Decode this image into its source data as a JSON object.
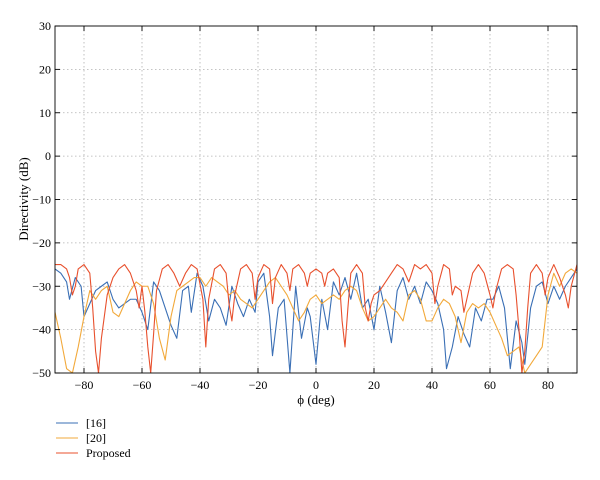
{
  "chart_data": {
    "type": "line",
    "xlabel": "ϕ (deg)",
    "ylabel": "Directivity (dB)",
    "xlim": [
      -90,
      90
    ],
    "ylim": [
      -50,
      30
    ],
    "xticks": [
      -80,
      -60,
      -40,
      -20,
      0,
      20,
      40,
      60,
      80
    ],
    "xtick_labels": [
      "−80",
      "−60",
      "−40",
      "−20",
      "0",
      "20",
      "40",
      "60",
      "80"
    ],
    "yticks": [
      30,
      20,
      10,
      0,
      -10,
      -20,
      -30,
      -40,
      -50
    ],
    "ytick_labels": [
      "30",
      "20",
      "10",
      "0",
      "−10",
      "−20",
      "−30",
      "−40",
      "−50"
    ],
    "grid": true,
    "legend_position": "below-left",
    "series": [
      {
        "name": "[16]",
        "color": "#3a6fb5",
        "points": [
          [
            -90,
            -26
          ],
          [
            -88,
            -27
          ],
          [
            -86,
            -29
          ],
          [
            -85,
            -33
          ],
          [
            -83,
            -28
          ],
          [
            -81,
            -30
          ],
          [
            -80,
            -37
          ],
          [
            -78,
            -34
          ],
          [
            -76,
            -31
          ],
          [
            -74,
            -30
          ],
          [
            -72,
            -29
          ],
          [
            -70,
            -33
          ],
          [
            -68,
            -35
          ],
          [
            -66,
            -34
          ],
          [
            -64,
            -33
          ],
          [
            -62,
            -33
          ],
          [
            -60,
            -36
          ],
          [
            -58,
            -40
          ],
          [
            -56,
            -29
          ],
          [
            -54,
            -31
          ],
          [
            -52,
            -35
          ],
          [
            -50,
            -39
          ],
          [
            -48,
            -42
          ],
          [
            -46,
            -31
          ],
          [
            -44,
            -30
          ],
          [
            -43,
            -36
          ],
          [
            -41,
            -27
          ],
          [
            -39,
            -30
          ],
          [
            -37,
            -38
          ],
          [
            -35,
            -33
          ],
          [
            -33,
            -35
          ],
          [
            -31,
            -39
          ],
          [
            -29,
            -30
          ],
          [
            -27,
            -34
          ],
          [
            -25,
            -37
          ],
          [
            -23,
            -33
          ],
          [
            -21,
            -36
          ],
          [
            -20,
            -29
          ],
          [
            -18,
            -27
          ],
          [
            -16,
            -37
          ],
          [
            -15,
            -46
          ],
          [
            -13,
            -35
          ],
          [
            -11,
            -33
          ],
          [
            -9,
            -50
          ],
          [
            -7,
            -30
          ],
          [
            -5,
            -42
          ],
          [
            -3,
            -35
          ],
          [
            -2,
            -37
          ],
          [
            0,
            -48
          ],
          [
            2,
            -33
          ],
          [
            4,
            -40
          ],
          [
            6,
            -29
          ],
          [
            8,
            -32
          ],
          [
            10,
            -28
          ],
          [
            12,
            -33
          ],
          [
            14,
            -27
          ],
          [
            16,
            -35
          ],
          [
            18,
            -33
          ],
          [
            20,
            -40
          ],
          [
            22,
            -30
          ],
          [
            24,
            -36
          ],
          [
            26,
            -43
          ],
          [
            28,
            -31
          ],
          [
            30,
            -28
          ],
          [
            32,
            -33
          ],
          [
            34,
            -30
          ],
          [
            36,
            -34
          ],
          [
            38,
            -29
          ],
          [
            40,
            -31
          ],
          [
            42,
            -34
          ],
          [
            44,
            -40
          ],
          [
            45,
            -49
          ],
          [
            47,
            -44
          ],
          [
            49,
            -37
          ],
          [
            51,
            -41
          ],
          [
            53,
            -44
          ],
          [
            55,
            -35
          ],
          [
            57,
            -38
          ],
          [
            59,
            -33
          ],
          [
            61,
            -33
          ],
          [
            63,
            -30
          ],
          [
            65,
            -35
          ],
          [
            67,
            -49
          ],
          [
            69,
            -38
          ],
          [
            71,
            -43
          ],
          [
            72,
            -48
          ],
          [
            74,
            -35
          ],
          [
            76,
            -30
          ],
          [
            78,
            -29
          ],
          [
            80,
            -34
          ],
          [
            82,
            -30
          ],
          [
            84,
            -33
          ],
          [
            86,
            -30
          ],
          [
            88,
            -28
          ],
          [
            90,
            -26
          ]
        ]
      },
      {
        "name": "[20]",
        "color": "#f2a93b",
        "points": [
          [
            -90,
            -36
          ],
          [
            -88,
            -42
          ],
          [
            -86,
            -49
          ],
          [
            -84,
            -50
          ],
          [
            -82,
            -44
          ],
          [
            -80,
            -37
          ],
          [
            -78,
            -31
          ],
          [
            -76,
            -33
          ],
          [
            -74,
            -31
          ],
          [
            -72,
            -30
          ],
          [
            -70,
            -36
          ],
          [
            -68,
            -37
          ],
          [
            -66,
            -34
          ],
          [
            -64,
            -31
          ],
          [
            -62,
            -29
          ],
          [
            -60,
            -30
          ],
          [
            -58,
            -30
          ],
          [
            -56,
            -34
          ],
          [
            -54,
            -42
          ],
          [
            -52,
            -47
          ],
          [
            -50,
            -37
          ],
          [
            -48,
            -31
          ],
          [
            -46,
            -30
          ],
          [
            -44,
            -29
          ],
          [
            -42,
            -28
          ],
          [
            -40,
            -28
          ],
          [
            -38,
            -30
          ],
          [
            -36,
            -28
          ],
          [
            -34,
            -29
          ],
          [
            -32,
            -30
          ],
          [
            -30,
            -32
          ],
          [
            -28,
            -31
          ],
          [
            -26,
            -33
          ],
          [
            -24,
            -34
          ],
          [
            -22,
            -35
          ],
          [
            -20,
            -33
          ],
          [
            -18,
            -31
          ],
          [
            -16,
            -29
          ],
          [
            -14,
            -28
          ],
          [
            -12,
            -30
          ],
          [
            -10,
            -32
          ],
          [
            -8,
            -35
          ],
          [
            -6,
            -38
          ],
          [
            -4,
            -36
          ],
          [
            -2,
            -33
          ],
          [
            0,
            -32
          ],
          [
            2,
            -34
          ],
          [
            4,
            -33
          ],
          [
            6,
            -32
          ],
          [
            8,
            -33
          ],
          [
            10,
            -31
          ],
          [
            12,
            -30
          ],
          [
            14,
            -31
          ],
          [
            16,
            -35
          ],
          [
            18,
            -38
          ],
          [
            20,
            -37
          ],
          [
            22,
            -35
          ],
          [
            24,
            -33
          ],
          [
            26,
            -35
          ],
          [
            28,
            -36
          ],
          [
            30,
            -38
          ],
          [
            32,
            -32
          ],
          [
            34,
            -31
          ],
          [
            36,
            -33
          ],
          [
            38,
            -38
          ],
          [
            40,
            -38
          ],
          [
            42,
            -35
          ],
          [
            44,
            -33
          ],
          [
            46,
            -34
          ],
          [
            48,
            -37
          ],
          [
            50,
            -43
          ],
          [
            52,
            -36
          ],
          [
            54,
            -34
          ],
          [
            56,
            -35
          ],
          [
            58,
            -34
          ],
          [
            60,
            -36
          ],
          [
            62,
            -39
          ],
          [
            64,
            -42
          ],
          [
            66,
            -46
          ],
          [
            68,
            -45
          ],
          [
            70,
            -44
          ],
          [
            72,
            -50
          ],
          [
            74,
            -48
          ],
          [
            76,
            -46
          ],
          [
            78,
            -44
          ],
          [
            80,
            -32
          ],
          [
            82,
            -27
          ],
          [
            84,
            -30
          ],
          [
            86,
            -27
          ],
          [
            88,
            -26
          ],
          [
            90,
            -27
          ]
        ]
      },
      {
        "name": "Proposed",
        "color": "#e8502d",
        "points": [
          [
            -90,
            -25
          ],
          [
            -88,
            -25
          ],
          [
            -86,
            -26
          ],
          [
            -85,
            -28
          ],
          [
            -84,
            -32
          ],
          [
            -83,
            -30
          ],
          [
            -82,
            -26
          ],
          [
            -80,
            -25
          ],
          [
            -78,
            -27
          ],
          [
            -77,
            -35
          ],
          [
            -76,
            -45
          ],
          [
            -75,
            -50
          ],
          [
            -74,
            -42
          ],
          [
            -72,
            -32
          ],
          [
            -70,
            -28
          ],
          [
            -68,
            -26
          ],
          [
            -66,
            -25
          ],
          [
            -64,
            -27
          ],
          [
            -62,
            -31
          ],
          [
            -61,
            -35
          ],
          [
            -60,
            -30
          ],
          [
            -59,
            -36
          ],
          [
            -58,
            -44
          ],
          [
            -57,
            -50
          ],
          [
            -56,
            -41
          ],
          [
            -55,
            -31
          ],
          [
            -53,
            -26
          ],
          [
            -51,
            -25
          ],
          [
            -49,
            -27
          ],
          [
            -47,
            -30
          ],
          [
            -45,
            -27
          ],
          [
            -43,
            -25
          ],
          [
            -41,
            -26
          ],
          [
            -39,
            -33
          ],
          [
            -38,
            -44
          ],
          [
            -37,
            -33
          ],
          [
            -35,
            -26
          ],
          [
            -33,
            -25
          ],
          [
            -31,
            -27
          ],
          [
            -30,
            -34
          ],
          [
            -29,
            -38
          ],
          [
            -28,
            -32
          ],
          [
            -26,
            -26
          ],
          [
            -24,
            -25
          ],
          [
            -22,
            -27
          ],
          [
            -21,
            -33
          ],
          [
            -20,
            -28
          ],
          [
            -18,
            -25
          ],
          [
            -16,
            -26
          ],
          [
            -15,
            -34
          ],
          [
            -14,
            -28
          ],
          [
            -12,
            -25
          ],
          [
            -10,
            -27
          ],
          [
            -9,
            -31
          ],
          [
            -8,
            -26
          ],
          [
            -6,
            -25
          ],
          [
            -4,
            -27
          ],
          [
            -3,
            -30
          ],
          [
            -2,
            -27
          ],
          [
            0,
            -26
          ],
          [
            2,
            -27
          ],
          [
            3,
            -30
          ],
          [
            4,
            -27
          ],
          [
            6,
            -26
          ],
          [
            8,
            -28
          ],
          [
            9,
            -38
          ],
          [
            10,
            -44
          ],
          [
            11,
            -35
          ],
          [
            12,
            -27
          ],
          [
            14,
            -25
          ],
          [
            16,
            -27
          ],
          [
            17,
            -35
          ],
          [
            18,
            -38
          ],
          [
            19,
            -34
          ],
          [
            20,
            -32
          ],
          [
            22,
            -31
          ],
          [
            24,
            -29
          ],
          [
            26,
            -27
          ],
          [
            28,
            -25
          ],
          [
            30,
            -26
          ],
          [
            32,
            -29
          ],
          [
            34,
            -25
          ],
          [
            36,
            -26
          ],
          [
            38,
            -25
          ],
          [
            40,
            -27
          ],
          [
            41,
            -34
          ],
          [
            42,
            -30
          ],
          [
            44,
            -25
          ],
          [
            46,
            -26
          ],
          [
            47,
            -32
          ],
          [
            48,
            -30
          ],
          [
            50,
            -31
          ],
          [
            51,
            -36
          ],
          [
            52,
            -33
          ],
          [
            54,
            -27
          ],
          [
            56,
            -25
          ],
          [
            58,
            -27
          ],
          [
            60,
            -32
          ],
          [
            61,
            -35
          ],
          [
            62,
            -31
          ],
          [
            64,
            -26
          ],
          [
            66,
            -25
          ],
          [
            68,
            -26
          ],
          [
            69,
            -32
          ],
          [
            70,
            -40
          ],
          [
            71,
            -50
          ],
          [
            72,
            -45
          ],
          [
            73,
            -35
          ],
          [
            74,
            -27
          ],
          [
            76,
            -25
          ],
          [
            78,
            -27
          ],
          [
            79,
            -32
          ],
          [
            80,
            -28
          ],
          [
            82,
            -25
          ],
          [
            84,
            -28
          ],
          [
            86,
            -32
          ],
          [
            87,
            -35
          ],
          [
            88,
            -30
          ],
          [
            90,
            -25
          ]
        ]
      }
    ]
  }
}
